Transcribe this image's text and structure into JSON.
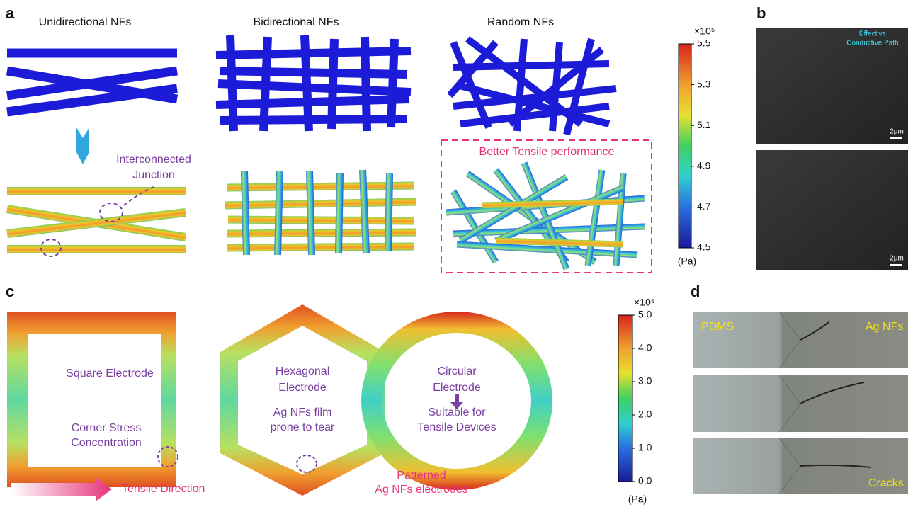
{
  "panel_a": {
    "label": "a",
    "titles": [
      "Unidirectional NFs",
      "Bidirectional NFs",
      "Random NFs"
    ],
    "annotation": [
      "Interconnected",
      "Junction"
    ],
    "highlight": "Better Tensile performance",
    "colorbar": {
      "multiplier": "×10⁵",
      "unit": "(Pa)",
      "ticks": [
        5.5,
        5.3,
        5.1,
        4.9,
        4.7,
        4.5
      ]
    }
  },
  "panel_b": {
    "label": "b",
    "annotation": [
      "Effective",
      "Conductive Path"
    ],
    "scale_bars": [
      "2μm",
      "2μm"
    ]
  },
  "panel_c": {
    "label": "c",
    "square": "Square Electrode",
    "corner": [
      "Corner Stress",
      "Concentration"
    ],
    "hexagon": [
      "Hexagonal",
      "Electrode"
    ],
    "tear": [
      "Ag NFs film",
      "prone to tear"
    ],
    "circle": [
      "Circular",
      "Electrode"
    ],
    "suitable": [
      "Suitable for",
      "Tensile Devices"
    ],
    "pattern": [
      "Patterned",
      "Ag NFs electrodes"
    ],
    "direction": "Tensile Direction",
    "colorbar": {
      "multiplier": "×10⁵",
      "unit": "(Pa)",
      "ticks": [
        {
          "value": 5,
          "label": "5.0"
        },
        {
          "value": 4,
          "label": "4.0"
        },
        {
          "value": 3,
          "label": "3.0"
        },
        {
          "value": 2,
          "label": "2.0"
        },
        {
          "value": 1,
          "label": "1.0"
        },
        {
          "value": 0,
          "label": "0.0"
        }
      ]
    }
  },
  "panel_d": {
    "label": "d",
    "labels": [
      "PDMS",
      "Ag NFs",
      "Cracks"
    ]
  }
}
